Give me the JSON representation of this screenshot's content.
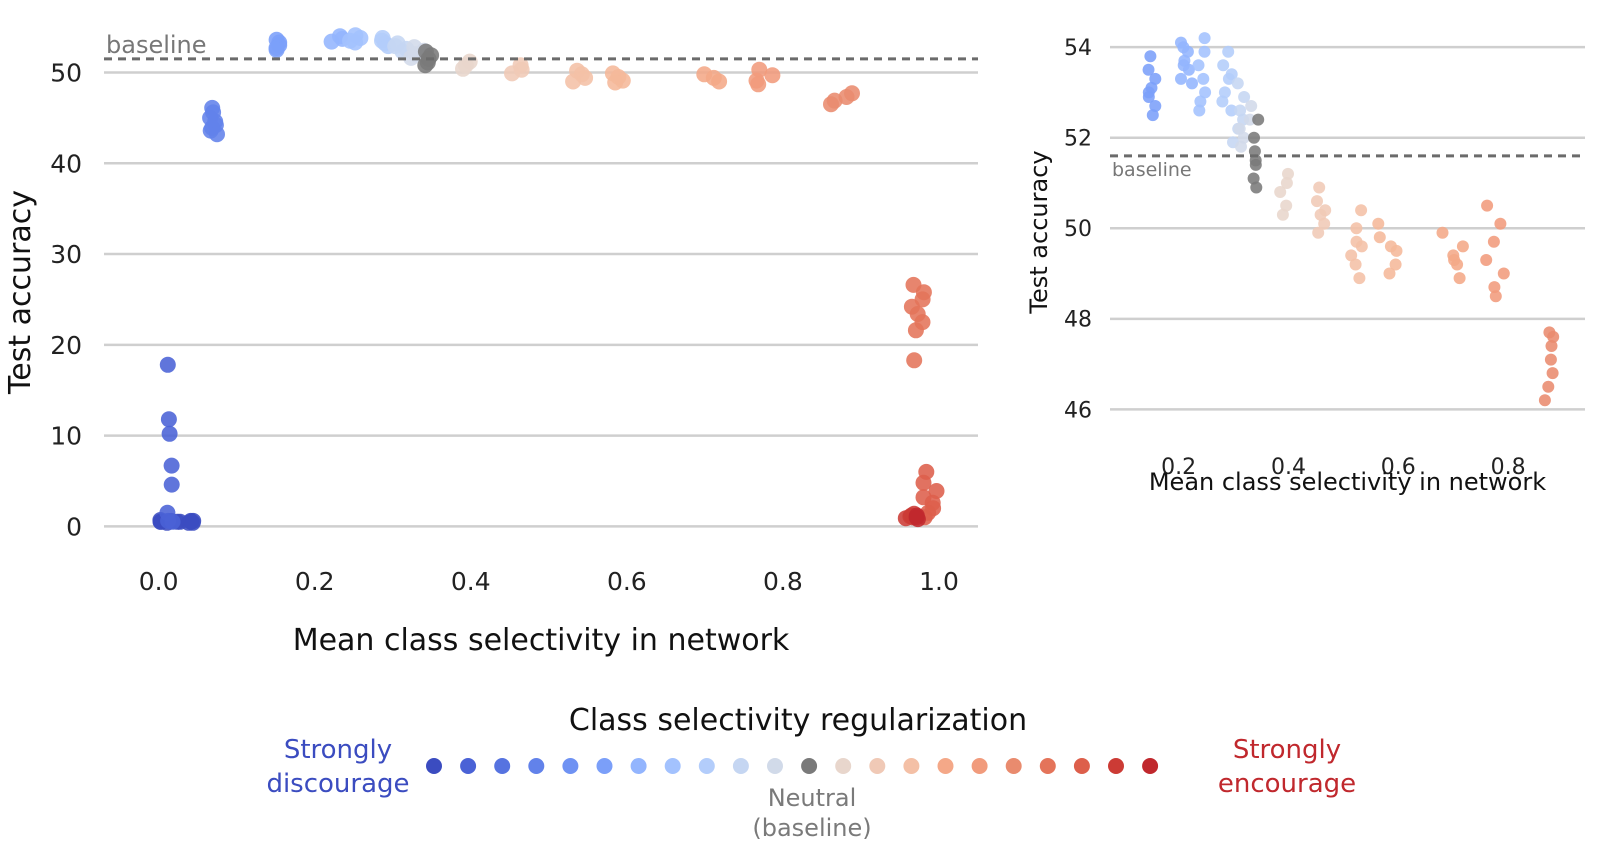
{
  "chart_data": [
    {
      "type": "scatter",
      "title": "",
      "xlabel": "Mean class selectivity in network",
      "ylabel": "Test accuracy",
      "xlim": [
        -0.07,
        1.05
      ],
      "ylim": [
        -1.5,
        56
      ],
      "x_ticks": [
        "0.0",
        "0.2",
        "0.4",
        "0.6",
        "0.8",
        "1.0"
      ],
      "y_ticks": [
        "0",
        "10",
        "20",
        "30",
        "40",
        "50"
      ],
      "x_tick_values": [
        0,
        0.2,
        0.4,
        0.6,
        0.8,
        1.0
      ],
      "y_tick_values": [
        0,
        10,
        20,
        30,
        40,
        50
      ],
      "grid": "horizontal",
      "baseline": {
        "label": "baseline",
        "value": 51.5
      },
      "groups": [
        {
          "color": "#3b4cc0",
          "x_range": [
            0.0,
            0.045
          ],
          "y": [
            0.4,
            0.6,
            0.5,
            0.5,
            0.7,
            0.4,
            0.6,
            0.5,
            0.5,
            0.6,
            0.4,
            0.5
          ]
        },
        {
          "color": "#4a62d6",
          "x_range": [
            0.005,
            0.02
          ],
          "y": [
            17.8,
            11.8,
            10.2,
            6.7,
            4.6,
            1.5,
            0.6,
            0.5
          ]
        },
        {
          "color": "#6282ea",
          "x_range": [
            0.065,
            0.075
          ],
          "y": [
            46.1,
            45.6,
            45.0,
            44.6,
            44.2,
            43.9,
            43.6,
            43.2
          ]
        },
        {
          "color": "#7b9ff9",
          "x_range": [
            0.15,
            0.16
          ],
          "y": [
            53.6,
            53.3,
            53.0,
            52.7,
            52.5
          ]
        },
        {
          "color": "#93b5fe",
          "x_range": [
            0.22,
            0.24
          ],
          "y": [
            54.0,
            53.7,
            53.4
          ]
        },
        {
          "color": "#a3c2fe",
          "x_range": [
            0.24,
            0.26
          ],
          "y": [
            54.1,
            53.8,
            53.5,
            53.3
          ]
        },
        {
          "color": "#b3cdfb",
          "x_range": [
            0.28,
            0.3
          ],
          "y": [
            53.8,
            53.5,
            53.2,
            52.9
          ]
        },
        {
          "color": "#c5d6f2",
          "x_range": [
            0.3,
            0.32
          ],
          "y": [
            53.2,
            52.9,
            52.6,
            52.3
          ]
        },
        {
          "color": "#d1dae9",
          "x_range": [
            0.32,
            0.34
          ],
          "y": [
            52.8,
            52.4,
            52.0,
            51.6
          ]
        },
        {
          "color": "#7a7a7a",
          "x_range": [
            0.34,
            0.35
          ],
          "y": [
            52.3,
            51.9,
            51.5,
            51.1,
            50.8
          ]
        },
        {
          "color": "#e8d6cc",
          "x_range": [
            0.39,
            0.41
          ],
          "y": [
            51.2,
            50.8,
            50.4
          ]
        },
        {
          "color": "#f0c9b6",
          "x_range": [
            0.45,
            0.47
          ],
          "y": [
            50.8,
            50.3,
            49.9
          ]
        },
        {
          "color": "#f4c0a6",
          "x_range": [
            0.52,
            0.55
          ],
          "y": [
            50.2,
            49.8,
            49.4,
            49.0
          ]
        },
        {
          "color": "#f5b89a",
          "x_range": [
            0.57,
            0.6
          ],
          "y": [
            49.9,
            49.5,
            49.1,
            48.9
          ]
        },
        {
          "color": "#f4a888",
          "x_range": [
            0.68,
            0.72
          ],
          "y": [
            49.8,
            49.4,
            49.0
          ]
        },
        {
          "color": "#f19b7c",
          "x_range": [
            0.76,
            0.79
          ],
          "y": [
            50.3,
            49.7,
            49.1,
            48.7
          ]
        },
        {
          "color": "#e98b6e",
          "x_range": [
            0.86,
            0.89
          ],
          "y": [
            47.7,
            47.3,
            46.9,
            46.5
          ]
        },
        {
          "color": "#e4745a",
          "x_range": [
            0.96,
            0.985
          ],
          "y": [
            26.6,
            25.8,
            25.0,
            24.2,
            23.4,
            22.5,
            21.6,
            18.3
          ]
        },
        {
          "color": "#dd5f4b",
          "x_range": [
            0.975,
            1.0
          ],
          "y": [
            6.0,
            4.8,
            3.9,
            3.2,
            2.6,
            2.0,
            1.5,
            1.0
          ]
        },
        {
          "color": "#cc3b35",
          "x_range": [
            0.955,
            0.98
          ],
          "y": [
            1.4,
            1.1,
            0.9,
            1.2,
            1.0
          ]
        },
        {
          "color": "#c0282d",
          "x_range": [
            0.96,
            0.975
          ],
          "y": [
            1.0,
            0.8,
            1.2
          ]
        }
      ]
    },
    {
      "type": "scatter",
      "title": "",
      "xlabel": "Mean class selectivity in network",
      "ylabel": "Test accuracy",
      "xlim": [
        0.075,
        0.94
      ],
      "ylim": [
        45.5,
        54.6
      ],
      "x_ticks": [
        "0.2",
        "0.4",
        "0.6",
        "0.8"
      ],
      "y_ticks": [
        "46",
        "48",
        "50",
        "52",
        "54"
      ],
      "x_tick_values": [
        0.2,
        0.4,
        0.6,
        0.8
      ],
      "y_tick_values": [
        46,
        48,
        50,
        52,
        54
      ],
      "grid": "horizontal",
      "baseline": {
        "label": "baseline",
        "value": 51.6
      },
      "groups": [
        {
          "color": "#7b9ff9",
          "x_range": [
            0.145,
            0.16
          ],
          "y": [
            53.8,
            53.5,
            53.3,
            53.1,
            52.9,
            52.7,
            52.5,
            53.0
          ]
        },
        {
          "color": "#93b5fe",
          "x_range": [
            0.2,
            0.225
          ],
          "y": [
            54.1,
            53.9,
            53.7,
            53.5,
            53.3,
            53.2,
            54.0,
            53.6
          ]
        },
        {
          "color": "#a3c2fe",
          "x_range": [
            0.235,
            0.255
          ],
          "y": [
            54.2,
            53.9,
            53.6,
            53.3,
            53.0,
            52.8,
            52.6
          ]
        },
        {
          "color": "#b3cdfb",
          "x_range": [
            0.275,
            0.3
          ],
          "y": [
            53.9,
            53.6,
            53.3,
            53.0,
            52.8,
            52.6,
            53.4
          ]
        },
        {
          "color": "#c5d6f2",
          "x_range": [
            0.295,
            0.32
          ],
          "y": [
            53.2,
            52.9,
            52.6,
            52.4,
            52.2,
            51.9
          ]
        },
        {
          "color": "#d1dae9",
          "x_range": [
            0.31,
            0.335
          ],
          "y": [
            52.7,
            52.4,
            52.2,
            52.0,
            51.8
          ]
        },
        {
          "color": "#7a7a7a",
          "x_range": [
            0.335,
            0.345
          ],
          "y": [
            52.4,
            52.0,
            51.7,
            51.4,
            51.1,
            50.9,
            51.5
          ]
        },
        {
          "color": "#e8d6cc",
          "x_range": [
            0.38,
            0.4
          ],
          "y": [
            51.2,
            50.8,
            50.5,
            50.3,
            51.0
          ]
        },
        {
          "color": "#f0c9b6",
          "x_range": [
            0.45,
            0.47
          ],
          "y": [
            50.9,
            50.6,
            50.3,
            50.1,
            49.9,
            50.4
          ]
        },
        {
          "color": "#f4c0a6",
          "x_range": [
            0.51,
            0.54
          ],
          "y": [
            50.4,
            50.0,
            49.7,
            49.4,
            49.2,
            48.9,
            49.6
          ]
        },
        {
          "color": "#f5b89a",
          "x_range": [
            0.56,
            0.6
          ],
          "y": [
            50.1,
            49.8,
            49.5,
            49.2,
            49.0,
            49.6
          ]
        },
        {
          "color": "#f4a888",
          "x_range": [
            0.68,
            0.72
          ],
          "y": [
            49.9,
            49.6,
            49.4,
            49.2,
            48.9,
            49.3
          ]
        },
        {
          "color": "#f19b7c",
          "x_range": [
            0.76,
            0.8
          ],
          "y": [
            50.5,
            50.1,
            49.7,
            49.3,
            49.0,
            48.7,
            48.5
          ]
        },
        {
          "color": "#e98b6e",
          "x_range": [
            0.86,
            0.89
          ],
          "y": [
            47.7,
            47.4,
            47.1,
            46.8,
            46.5,
            46.2,
            47.6
          ]
        }
      ]
    }
  ],
  "legend": {
    "title": "Class selectivity regularization",
    "left_label_line1": "Strongly",
    "left_label_line2": "discourage",
    "right_label_line1": "Strongly",
    "right_label_line2": "encourage",
    "center_label_line1": "Neutral",
    "center_label_line2": "(baseline)",
    "left_color": "#3b4cc0",
    "right_color": "#c0282d",
    "center_color": "#7a7a7a",
    "swatches": [
      "#3b4cc0",
      "#4a62d6",
      "#5673e0",
      "#6282ea",
      "#6f92f3",
      "#7b9ff9",
      "#93b5fe",
      "#a3c2fe",
      "#b3cdfb",
      "#c5d6f2",
      "#d1dae9",
      "#7a7a7a",
      "#e8d6cc",
      "#f0c9b6",
      "#f4c0a6",
      "#f4a888",
      "#f19b7c",
      "#e98b6e",
      "#e4745a",
      "#dd5f4b",
      "#cc3b35",
      "#c0282d"
    ]
  }
}
